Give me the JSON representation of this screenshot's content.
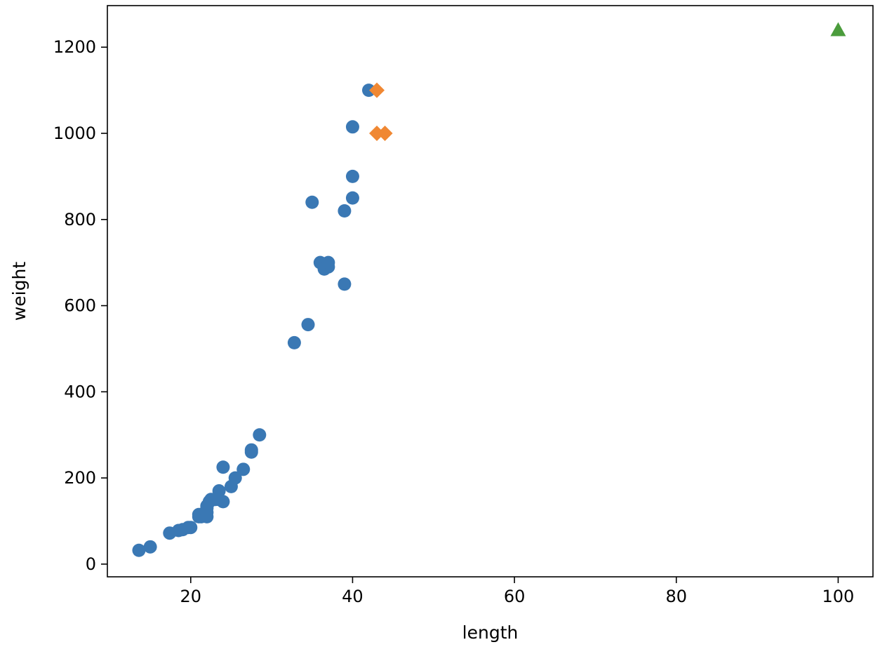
{
  "chart_data": {
    "type": "scatter",
    "xlabel": "length",
    "ylabel": "weight",
    "xlim": [
      9.7,
      104.3
    ],
    "ylim": [
      -29.5,
      1296.5
    ],
    "xticks": [
      20,
      40,
      60,
      80,
      100
    ],
    "yticks": [
      0,
      200,
      400,
      600,
      800,
      1000,
      1200
    ],
    "grid": false,
    "series": [
      {
        "marker": "circle",
        "color": "#3a78b4",
        "points": [
          [
            13.6,
            32
          ],
          [
            15.0,
            40
          ],
          [
            17.4,
            72
          ],
          [
            18.5,
            78
          ],
          [
            19.0,
            80
          ],
          [
            19.7,
            85
          ],
          [
            20.0,
            85
          ],
          [
            21.0,
            110
          ],
          [
            21.0,
            115
          ],
          [
            21.3,
            110
          ],
          [
            22.0,
            110
          ],
          [
            22.0,
            120
          ],
          [
            22.0,
            130
          ],
          [
            22.0,
            135
          ],
          [
            22.3,
            145
          ],
          [
            22.5,
            150
          ],
          [
            23.0,
            150
          ],
          [
            23.5,
            150
          ],
          [
            23.5,
            170
          ],
          [
            24.0,
            145
          ],
          [
            24.0,
            225
          ],
          [
            25.0,
            180
          ],
          [
            25.5,
            200
          ],
          [
            26.5,
            220
          ],
          [
            27.5,
            260
          ],
          [
            27.5,
            265
          ],
          [
            28.5,
            300
          ],
          [
            32.8,
            514
          ],
          [
            34.5,
            556
          ],
          [
            35.0,
            840
          ],
          [
            36.0,
            700
          ],
          [
            36.5,
            685
          ],
          [
            37.0,
            690
          ],
          [
            37.0,
            700
          ],
          [
            39.0,
            650
          ],
          [
            39.0,
            820
          ],
          [
            40.0,
            850
          ],
          [
            40.0,
            900
          ],
          [
            40.0,
            1015
          ],
          [
            42.0,
            1100
          ]
        ]
      },
      {
        "marker": "diamond",
        "color": "#f08833",
        "points": [
          [
            43.0,
            1100
          ],
          [
            43.0,
            1000
          ],
          [
            44.0,
            1000
          ]
        ]
      },
      {
        "marker": "triangle",
        "color": "#4b9c3c",
        "points": [
          [
            100,
            1240
          ]
        ]
      }
    ]
  }
}
